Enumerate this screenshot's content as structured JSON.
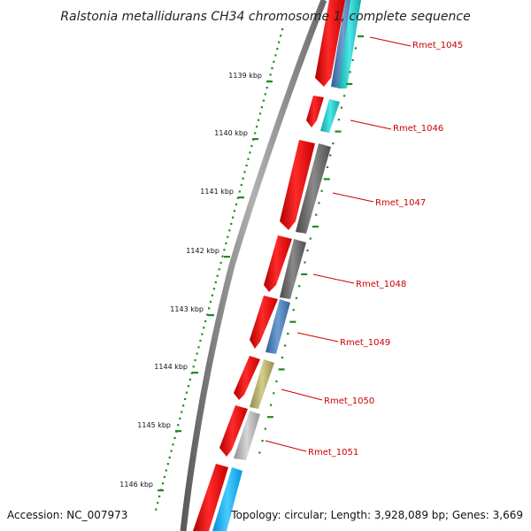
{
  "title": "Ralstonia metallidurans CH34 chromosome 1, complete sequence",
  "accession_label": "Accession: NC_007973",
  "summary_label": "Topology: circular; Length: 3,928,089 bp; Genes: 3,669",
  "kbp_labels": [
    "1139 kbp",
    "1140 kbp",
    "1141 kbp",
    "1142 kbp",
    "1143 kbp",
    "1144 kbp",
    "1145 kbp",
    "1146 kbp"
  ],
  "genes": [
    {
      "name": "Rmet_1045",
      "cog_color": "#4f7fb7"
    },
    {
      "name": "Rmet_1046",
      "cog_color": "#22c6c6"
    },
    {
      "name": "Rmet_1047",
      "cog_color": "#6c6c6c"
    },
    {
      "name": "Rmet_1048",
      "cog_color": "#6c6c6c"
    },
    {
      "name": "Rmet_1049",
      "cog_color": "#4f7fb7"
    },
    {
      "name": "Rmet_1050",
      "cog_color": "#b8b06a"
    },
    {
      "name": "Rmet_1051",
      "cog_color": "#b5b5b5"
    }
  ],
  "colors": {
    "cds": "#ff0000",
    "backbone": "#8c8c8c",
    "label": "#cc0000",
    "gc_ticks": "#1e8c1e",
    "cyan": "#00bfff"
  }
}
